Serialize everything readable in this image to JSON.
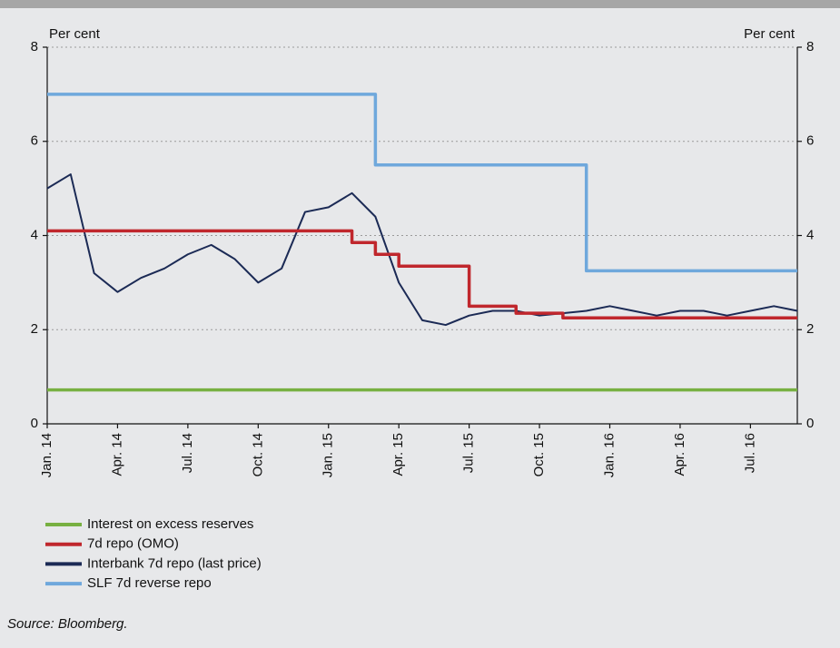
{
  "chart_data": {
    "type": "line",
    "y_label": "Per cent",
    "y2_label": "Per cent",
    "x": [
      "2014-01",
      "2014-02",
      "2014-03",
      "2014-04",
      "2014-05",
      "2014-06",
      "2014-07",
      "2014-08",
      "2014-09",
      "2014-10",
      "2014-11",
      "2014-12",
      "2015-01",
      "2015-02",
      "2015-03",
      "2015-04",
      "2015-05",
      "2015-06",
      "2015-07",
      "2015-08",
      "2015-09",
      "2015-10",
      "2015-11",
      "2015-12",
      "2016-01",
      "2016-02",
      "2016-03",
      "2016-04",
      "2016-05",
      "2016-06",
      "2016-07",
      "2016-08",
      "2016-09"
    ],
    "xlim": [
      "2014-01",
      "2016-09"
    ],
    "xticks": [
      {
        "value": "2014-01",
        "label": "Jan. 14"
      },
      {
        "value": "2014-04",
        "label": "Apr. 14"
      },
      {
        "value": "2014-07",
        "label": "Jul. 14"
      },
      {
        "value": "2014-10",
        "label": "Oct. 14"
      },
      {
        "value": "2015-01",
        "label": "Jan. 15"
      },
      {
        "value": "2015-04",
        "label": "Apr. 15"
      },
      {
        "value": "2015-07",
        "label": "Jul. 15"
      },
      {
        "value": "2015-10",
        "label": "Oct. 15"
      },
      {
        "value": "2016-01",
        "label": "Jan. 16"
      },
      {
        "value": "2016-04",
        "label": "Apr. 16"
      },
      {
        "value": "2016-07",
        "label": "Jul. 16"
      }
    ],
    "ylim": [
      0,
      8
    ],
    "yticks": [
      0,
      2,
      4,
      6,
      8
    ],
    "y2lim": [
      0,
      8
    ],
    "y2ticks": [
      0,
      2,
      4,
      6,
      8
    ],
    "grid": true,
    "series": [
      {
        "name": "Interest on excess reserves",
        "color": "#77b041",
        "values": [
          0.72,
          0.72,
          0.72,
          0.72,
          0.72,
          0.72,
          0.72,
          0.72,
          0.72,
          0.72,
          0.72,
          0.72,
          0.72,
          0.72,
          0.72,
          0.72,
          0.72,
          0.72,
          0.72,
          0.72,
          0.72,
          0.72,
          0.72,
          0.72,
          0.72,
          0.72,
          0.72,
          0.72,
          0.72,
          0.72,
          0.72,
          0.72,
          0.72
        ]
      },
      {
        "name": "7d repo (OMO)",
        "color": "#c0272d",
        "step": true,
        "values": [
          4.1,
          4.1,
          4.1,
          4.1,
          4.1,
          4.1,
          4.1,
          4.1,
          4.1,
          4.1,
          4.1,
          4.1,
          4.1,
          3.85,
          3.6,
          3.35,
          3.35,
          3.35,
          2.5,
          2.5,
          2.35,
          2.35,
          2.25,
          2.25,
          2.25,
          2.25,
          2.25,
          2.25,
          2.25,
          2.25,
          2.25,
          2.25,
          2.25
        ]
      },
      {
        "name": "Interbank 7d repo (last price)",
        "color": "#1b2a55",
        "values": [
          5.0,
          5.3,
          3.2,
          2.8,
          3.1,
          3.3,
          3.6,
          3.8,
          3.5,
          3.0,
          3.3,
          4.5,
          4.6,
          4.9,
          4.4,
          3.0,
          2.2,
          2.1,
          2.3,
          2.4,
          2.4,
          2.3,
          2.35,
          2.4,
          2.5,
          2.4,
          2.3,
          2.4,
          2.4,
          2.3,
          2.4,
          2.5,
          2.4
        ]
      },
      {
        "name": "SLF 7d reverse repo",
        "color": "#6fa8dc",
        "step": true,
        "values": [
          7,
          7,
          7,
          7,
          7,
          7,
          7,
          7,
          7,
          7,
          7,
          7,
          7,
          7,
          5.5,
          5.5,
          5.5,
          5.5,
          5.5,
          5.5,
          5.5,
          5.5,
          5.5,
          3.25,
          3.25,
          3.25,
          3.25,
          3.25,
          3.25,
          3.25,
          3.25,
          3.25,
          3.25
        ]
      }
    ]
  },
  "source": "Source: Bloomberg."
}
